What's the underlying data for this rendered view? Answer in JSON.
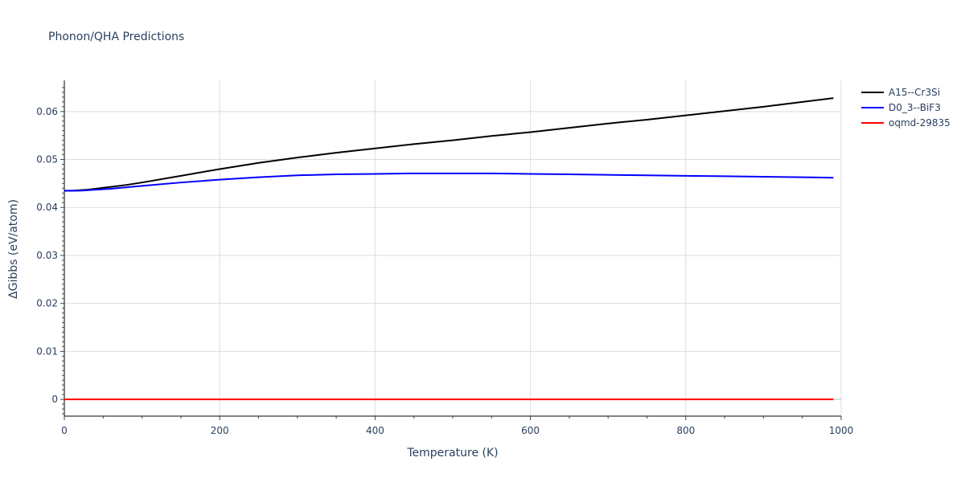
{
  "chart_data": {
    "type": "line",
    "title": "Phonon/QHA Predictions",
    "xlabel": "Temperature (K)",
    "ylabel": "ΔGibbs (eV/atom)",
    "xlim": [
      0,
      1000
    ],
    "ylim": [
      -0.0035,
      0.0665
    ],
    "x_ticks": [
      0,
      200,
      400,
      600,
      800,
      1000
    ],
    "x_tick_labels": [
      "0",
      "200",
      "400",
      "600",
      "800",
      "1000"
    ],
    "y_ticks": [
      0,
      0.01,
      0.02,
      0.03,
      0.04,
      0.05,
      0.06
    ],
    "y_tick_labels": [
      "0",
      "0.01",
      "0.02",
      "0.03",
      "0.04",
      "0.05",
      "0.06"
    ],
    "grid": true,
    "legend_position": "top-right",
    "series": [
      {
        "name": "A15--Cr3Si",
        "color": "#000000",
        "x": [
          0,
          10,
          20,
          30,
          40,
          60,
          80,
          100,
          150,
          200,
          250,
          300,
          350,
          400,
          450,
          500,
          550,
          600,
          650,
          700,
          750,
          800,
          850,
          900,
          950,
          990
        ],
        "y": [
          0.0435,
          0.0435,
          0.0436,
          0.0437,
          0.0439,
          0.0443,
          0.0447,
          0.0452,
          0.0466,
          0.048,
          0.0493,
          0.0504,
          0.0514,
          0.0523,
          0.0532,
          0.054,
          0.0549,
          0.0557,
          0.0566,
          0.0575,
          0.0583,
          0.0592,
          0.0601,
          0.061,
          0.062,
          0.0628
        ]
      },
      {
        "name": "D0_3--BiF3",
        "color": "#0000ff",
        "x": [
          0,
          10,
          20,
          30,
          40,
          60,
          80,
          100,
          150,
          200,
          250,
          300,
          350,
          400,
          450,
          500,
          550,
          600,
          650,
          700,
          750,
          800,
          850,
          900,
          950,
          990
        ],
        "y": [
          0.0435,
          0.0435,
          0.0435,
          0.0436,
          0.0437,
          0.0439,
          0.0442,
          0.0445,
          0.0452,
          0.0458,
          0.0463,
          0.0467,
          0.0469,
          0.047,
          0.0471,
          0.0471,
          0.0471,
          0.047,
          0.0469,
          0.0468,
          0.0467,
          0.0466,
          0.0465,
          0.0464,
          0.0463,
          0.0462
        ]
      },
      {
        "name": "oqmd-29835",
        "color": "#ff0000",
        "x": [
          0,
          990
        ],
        "y": [
          0,
          0
        ]
      }
    ]
  }
}
